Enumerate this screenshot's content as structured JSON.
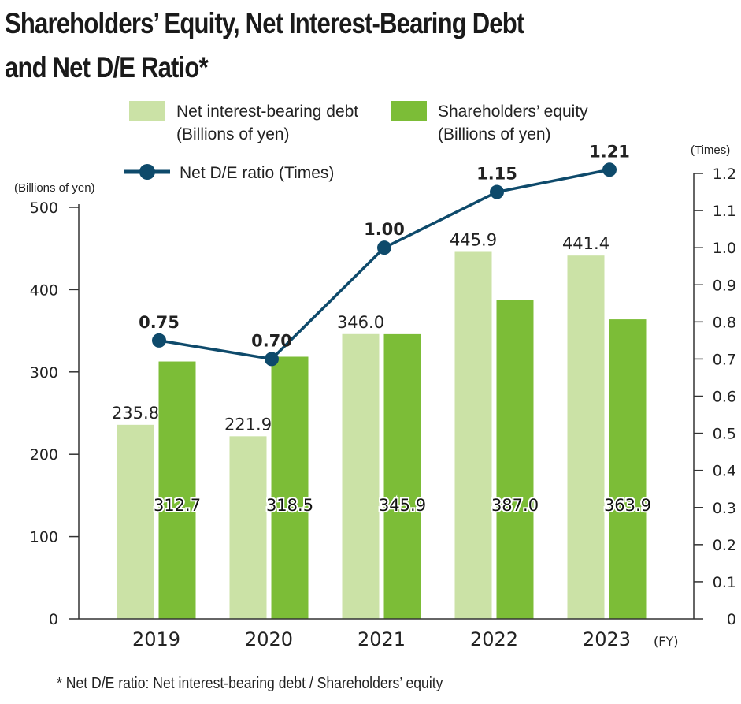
{
  "title_line1": "Shareholders’ Equity, Net Interest-Bearing Debt",
  "title_line2": "and Net D/E Ratio*",
  "footnote": "* Net D/E ratio: Net interest-bearing debt / Shareholders’ equity",
  "colors": {
    "debt": "#cbe2a6",
    "equity": "#7cbd37",
    "ratio": "#0e4a6b",
    "axis": "#333333"
  },
  "legend": {
    "debt_line1": "Net interest-bearing debt",
    "debt_line2": "(Billions of yen)",
    "equity_line1": "Shareholders’ equity",
    "equity_line2": "(Billions of yen)",
    "ratio_label": "Net D/E ratio (Times)"
  },
  "chart_data": {
    "type": "bar",
    "categories": [
      "2019",
      "2020",
      "2021",
      "2022",
      "2023"
    ],
    "x_unit": "(FY)",
    "y_left_unit": "(Billions of yen)",
    "y_right_unit": "(Times)",
    "ylim_left": [
      0,
      500
    ],
    "yticks_left": [
      "0",
      "100",
      "200",
      "300",
      "400",
      "500"
    ],
    "ylim_right": [
      0,
      1.2
    ],
    "yticks_right": [
      "0",
      "0.1",
      "0.2",
      "0.3",
      "0.4",
      "0.5",
      "0.6",
      "0.7",
      "0.8",
      "0.9",
      "1.0",
      "1.1",
      "1.2"
    ],
    "grid": false,
    "legend_position": "top",
    "series": [
      {
        "name": "Net interest-bearing debt",
        "type": "bar",
        "axis": "left",
        "values": [
          235.8,
          221.9,
          346.0,
          445.9,
          441.4
        ],
        "labels": [
          "235.8",
          "221.9",
          "346.0",
          "445.9",
          "441.4"
        ]
      },
      {
        "name": "Shareholders’ equity",
        "type": "bar",
        "axis": "left",
        "values": [
          312.7,
          318.5,
          345.9,
          387.0,
          363.9
        ],
        "labels": [
          "312.7",
          "318.5",
          "345.9",
          "387.0",
          "363.9"
        ]
      },
      {
        "name": "Net D/E ratio",
        "type": "line",
        "axis": "right",
        "values": [
          0.75,
          0.7,
          1.0,
          1.15,
          1.21
        ],
        "labels": [
          "0.75",
          "0.70",
          "1.00",
          "1.15",
          "1.21"
        ]
      }
    ]
  }
}
